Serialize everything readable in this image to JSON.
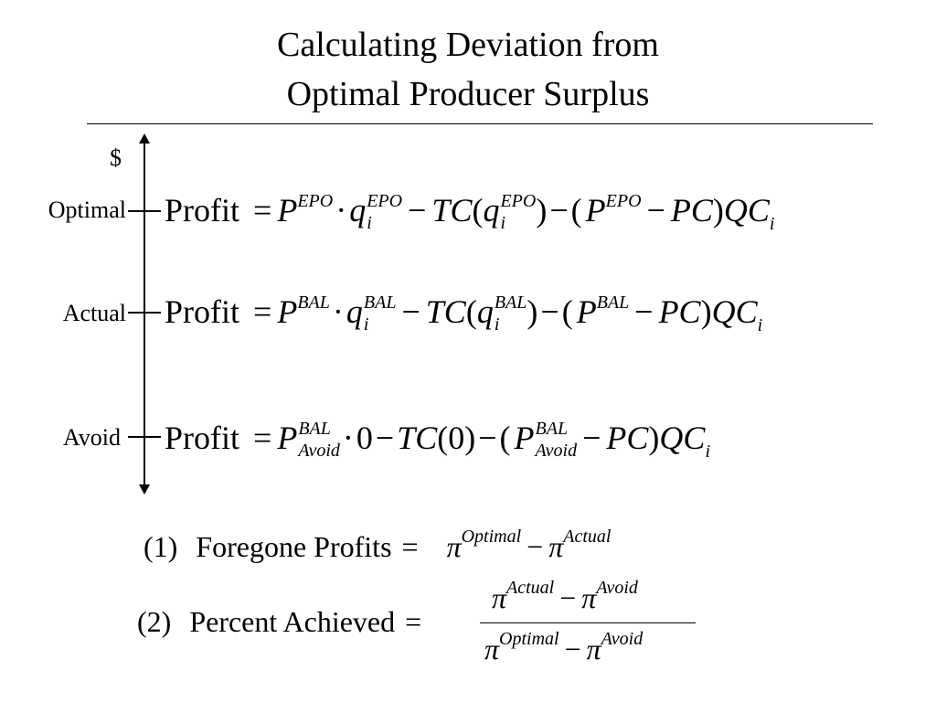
{
  "slide": {
    "title_line1": "Calculating Deviation from",
    "title_line2": "Optimal Producer Surplus"
  },
  "axis": {
    "dollar": "$",
    "labels": {
      "optimal": "Optimal",
      "actual": "Actual",
      "avoid": "Avoid"
    }
  },
  "equations": {
    "profit": "Profit",
    "equals": "=",
    "P": "P",
    "q": "q",
    "TC": "TC",
    "PC": "PC",
    "QC": "QC",
    "i": "i",
    "dot": "·",
    "minus": "−",
    "zero": "0",
    "lparen": "(",
    "rparen": ")",
    "epo": "EPO",
    "bal": "BAL",
    "avoid": "Avoid"
  },
  "formulas": {
    "f1_number": "(1)",
    "f1_label": "Foregone Profits",
    "f2_number": "(2)",
    "f2_label": "Percent Achieved",
    "pi": "π",
    "optimal": "Optimal",
    "actual": "Actual",
    "avoid": "Avoid"
  }
}
